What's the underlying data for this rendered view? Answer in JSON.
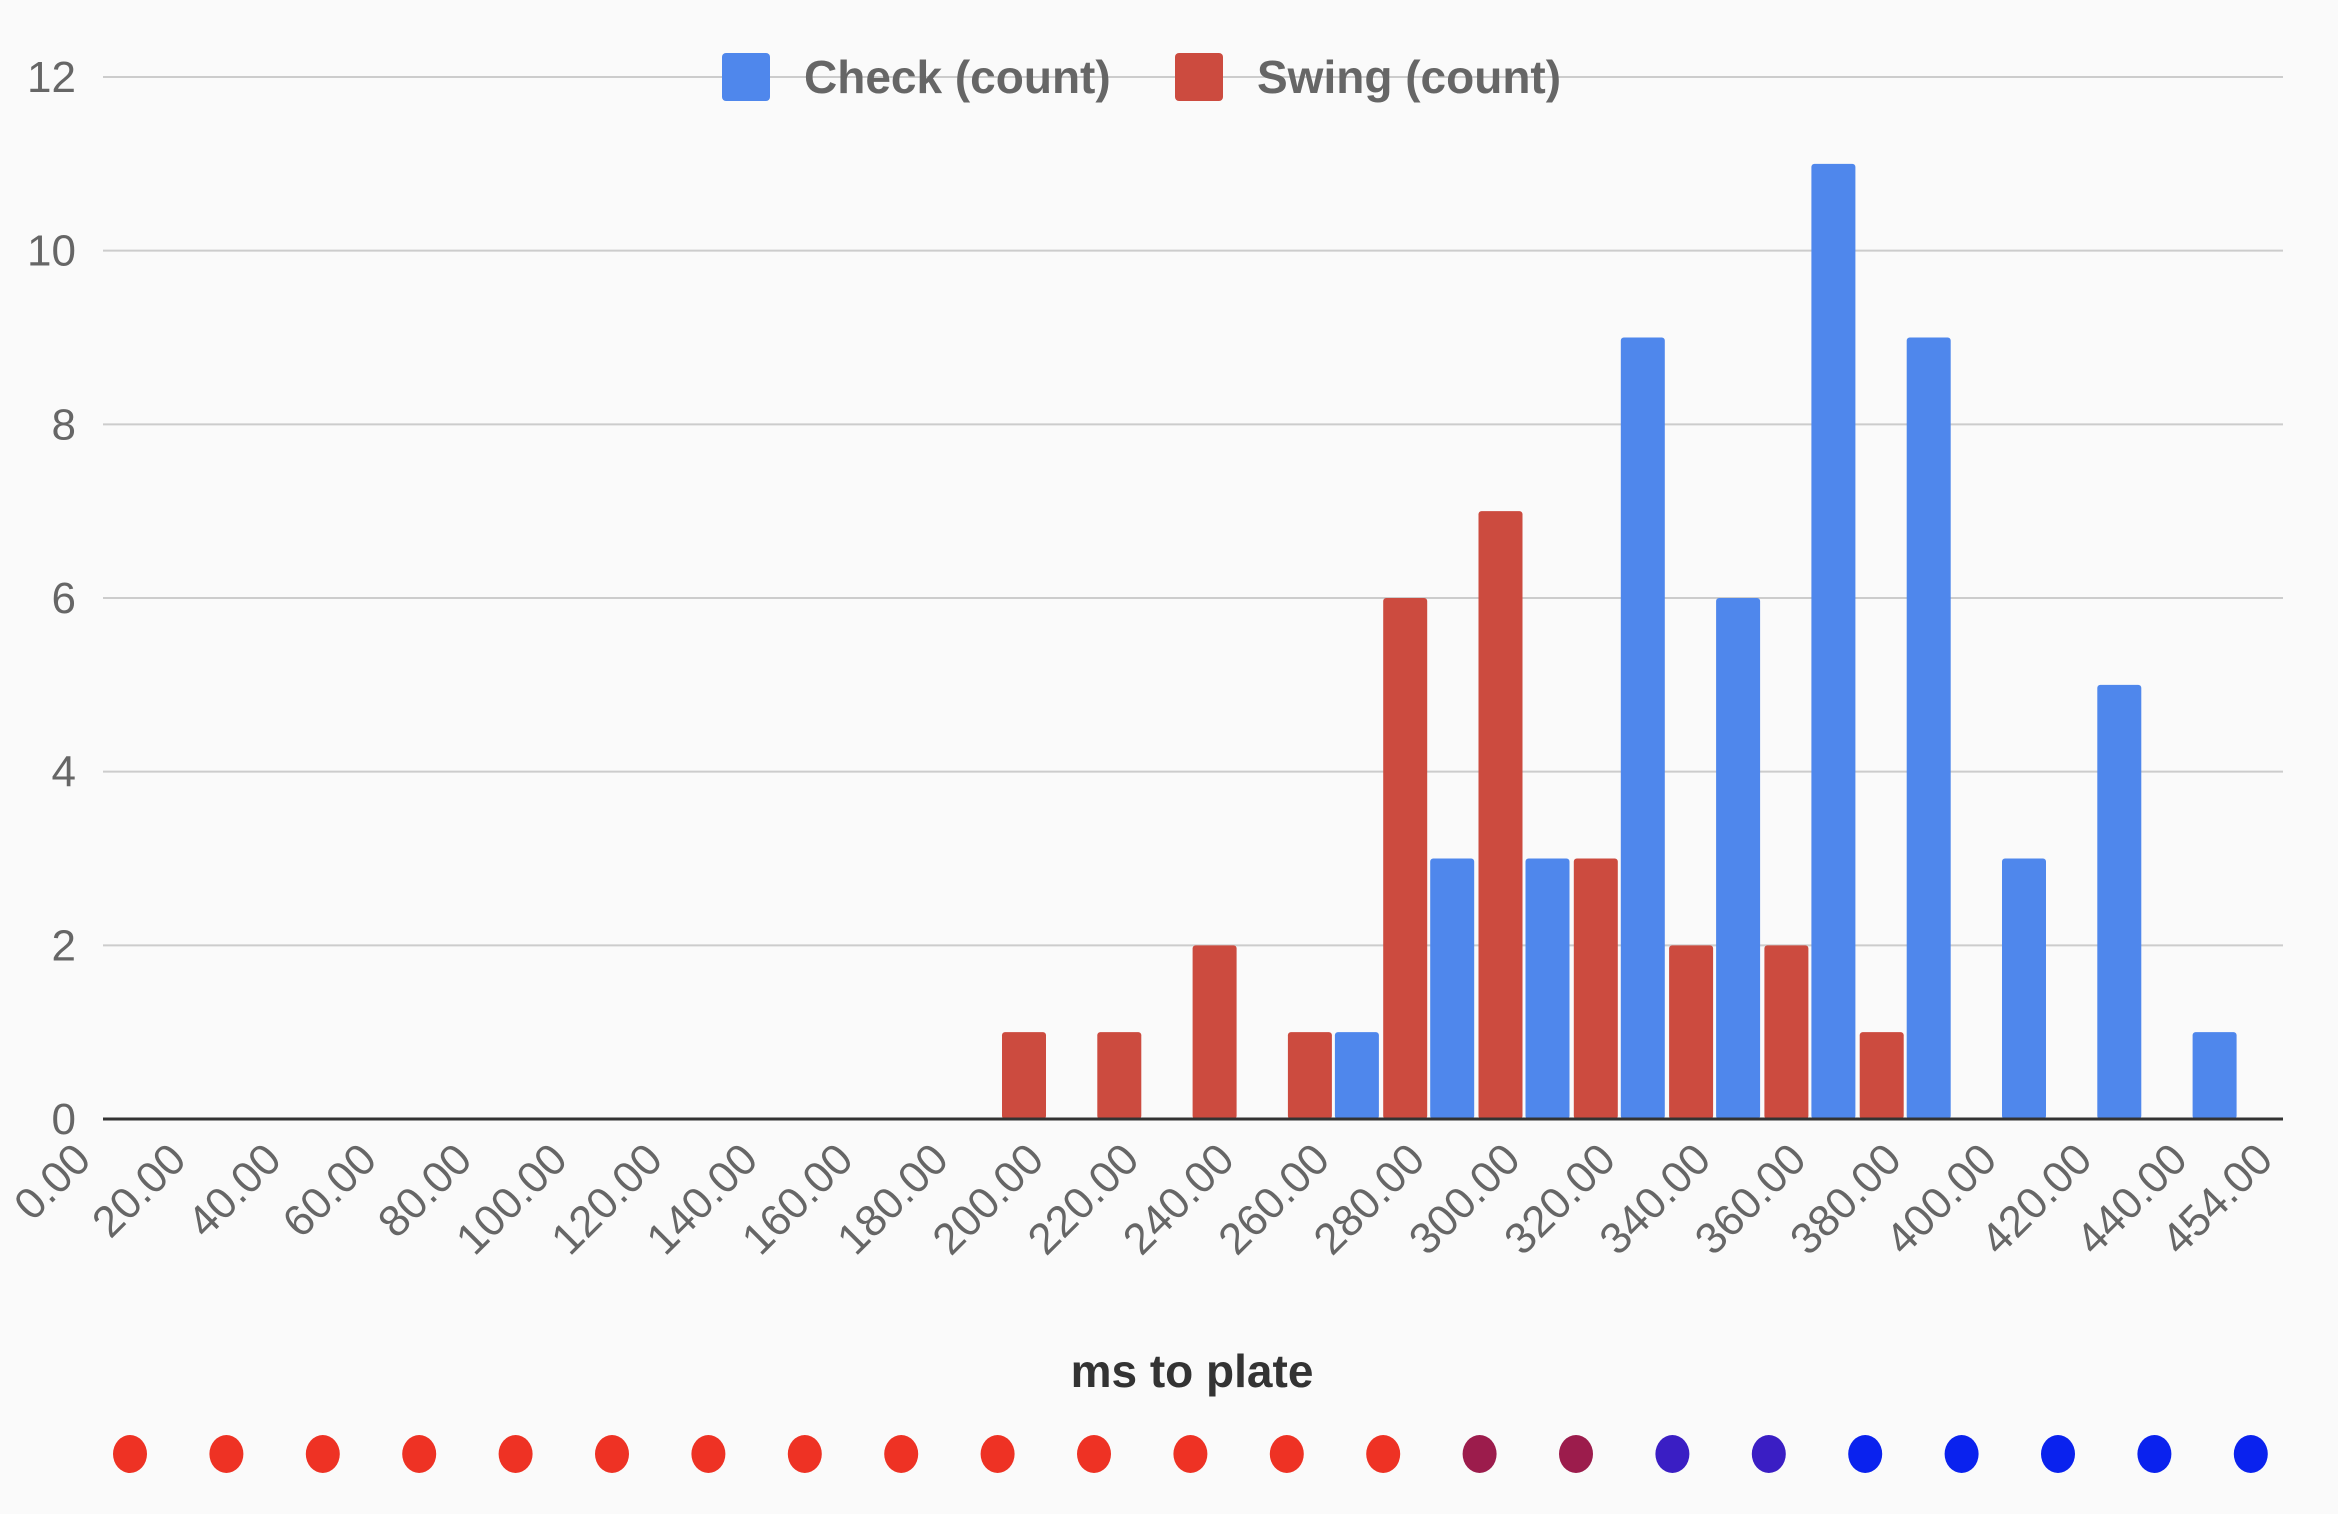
{
  "chart_data": {
    "type": "bar",
    "xlabel": "ms to plate",
    "ylabel": "",
    "ylim": [
      0,
      12
    ],
    "yticks": [
      "0",
      "2",
      "4",
      "6",
      "8",
      "10",
      "12"
    ],
    "x_tick_labels": [
      "0.00",
      "20.00",
      "40.00",
      "60.00",
      "80.00",
      "100.00",
      "120.00",
      "140.00",
      "160.00",
      "180.00",
      "200.00",
      "220.00",
      "240.00",
      "260.00",
      "280.00",
      "300.00",
      "320.00",
      "340.00",
      "360.00",
      "380.00",
      "400.00",
      "420.00",
      "440.00",
      "454.00"
    ],
    "categories": [
      "180.00-200.00",
      "200.00-220.00",
      "220.00-240.00",
      "240.00-260.00",
      "260.00-280.00",
      "280.00-300.00",
      "300.00-320.00",
      "320.00-340.00",
      "340.00-360.00",
      "360.00-380.00",
      "380.00-400.00",
      "400.00-420.00",
      "420.00-440.00"
    ],
    "series": [
      {
        "name": "Check (count)",
        "color": "#4f87ec",
        "values": [
          0,
          0,
          0,
          1,
          3,
          3,
          9,
          6,
          11,
          9,
          3,
          5,
          1
        ]
      },
      {
        "name": "Swing (count)",
        "color": "#cc4b3f",
        "values": [
          1,
          1,
          2,
          1,
          6,
          7,
          3,
          2,
          2,
          1,
          0,
          0,
          0
        ]
      }
    ],
    "legend_position": "top",
    "grid": true,
    "color_scale_dots": [
      "#ee3224",
      "#ee3224",
      "#ee3224",
      "#ee3224",
      "#ee3224",
      "#ee3224",
      "#ee3224",
      "#ee3224",
      "#ee3224",
      "#ee3224",
      "#ee3224",
      "#ee3224",
      "#ee3224",
      "#ee3224",
      "#9c1c4c",
      "#9c1c4c",
      "#3a1ec4",
      "#3a1ec4",
      "#0a22ee",
      "#0a22ee",
      "#0a22ee",
      "#0a22ee",
      "#0a22ee"
    ]
  }
}
